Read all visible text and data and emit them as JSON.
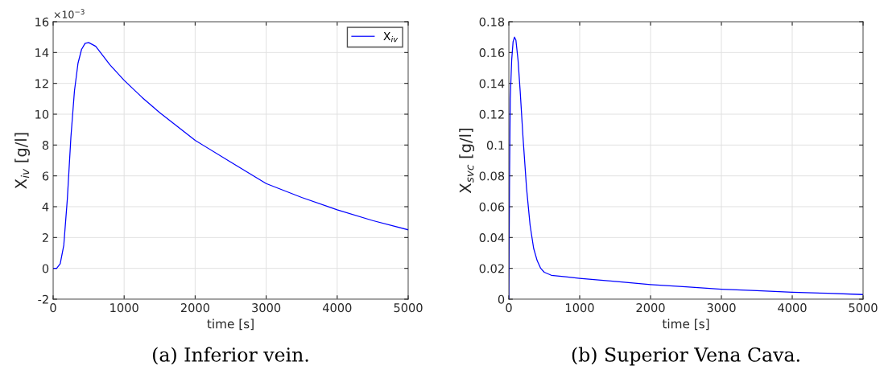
{
  "chart_data": [
    {
      "type": "line",
      "title": "(a) Inferior vein.",
      "xlabel": "time [s]",
      "ylabel": "X$_{iv}$ [g/l]",
      "annotations": [
        "×10$^{−3}$"
      ],
      "xlim": [
        0,
        5000
      ],
      "xticks": [
        0,
        1000,
        2000,
        3000,
        4000,
        5000
      ],
      "ylim": [
        -2,
        16
      ],
      "yticks": [
        -2,
        0,
        2,
        4,
        6,
        8,
        10,
        12,
        14,
        16
      ],
      "grid": true,
      "legend": "top right",
      "series": [
        {
          "name": "X$_{iv}$",
          "color": "#0000ff",
          "x": [
            0,
            50,
            100,
            150,
            200,
            250,
            300,
            350,
            400,
            450,
            500,
            600,
            700,
            800,
            1000,
            1250,
            1500,
            1750,
            2000,
            2500,
            3000,
            3500,
            4000,
            4500,
            5000
          ],
          "values": [
            0,
            0,
            0.3,
            1.5,
            4.5,
            8.5,
            11.5,
            13.3,
            14.2,
            14.6,
            14.65,
            14.4,
            13.8,
            13.2,
            12.2,
            11.1,
            10.1,
            9.2,
            8.3,
            6.9,
            5.5,
            4.6,
            3.8,
            3.1,
            2.5
          ]
        }
      ]
    },
    {
      "type": "line",
      "title": "(b) Superior Vena Cava.",
      "xlabel": "time [s]",
      "ylabel": "X$_{svc}$ [g/l]",
      "xlim": [
        0,
        5000
      ],
      "xticks": [
        0,
        1000,
        2000,
        3000,
        4000,
        5000
      ],
      "ylim": [
        0,
        0.18
      ],
      "yticks": [
        0,
        0.02,
        0.04,
        0.06,
        0.08,
        0.1,
        0.12,
        0.14,
        0.16,
        0.18
      ],
      "grid": true,
      "series": [
        {
          "color": "#0000ff",
          "x": [
            0,
            10,
            20,
            40,
            60,
            80,
            100,
            130,
            160,
            200,
            250,
            300,
            350,
            400,
            450,
            500,
            600,
            800,
            1000,
            1500,
            2000,
            2500,
            3000,
            3500,
            4000,
            4500,
            5000
          ],
          "values": [
            0,
            0.08,
            0.13,
            0.155,
            0.167,
            0.17,
            0.168,
            0.155,
            0.135,
            0.105,
            0.072,
            0.048,
            0.033,
            0.025,
            0.02,
            0.0175,
            0.0155,
            0.0145,
            0.0135,
            0.0115,
            0.0095,
            0.008,
            0.0065,
            0.0055,
            0.0045,
            0.0038,
            0.003
          ]
        }
      ]
    }
  ]
}
